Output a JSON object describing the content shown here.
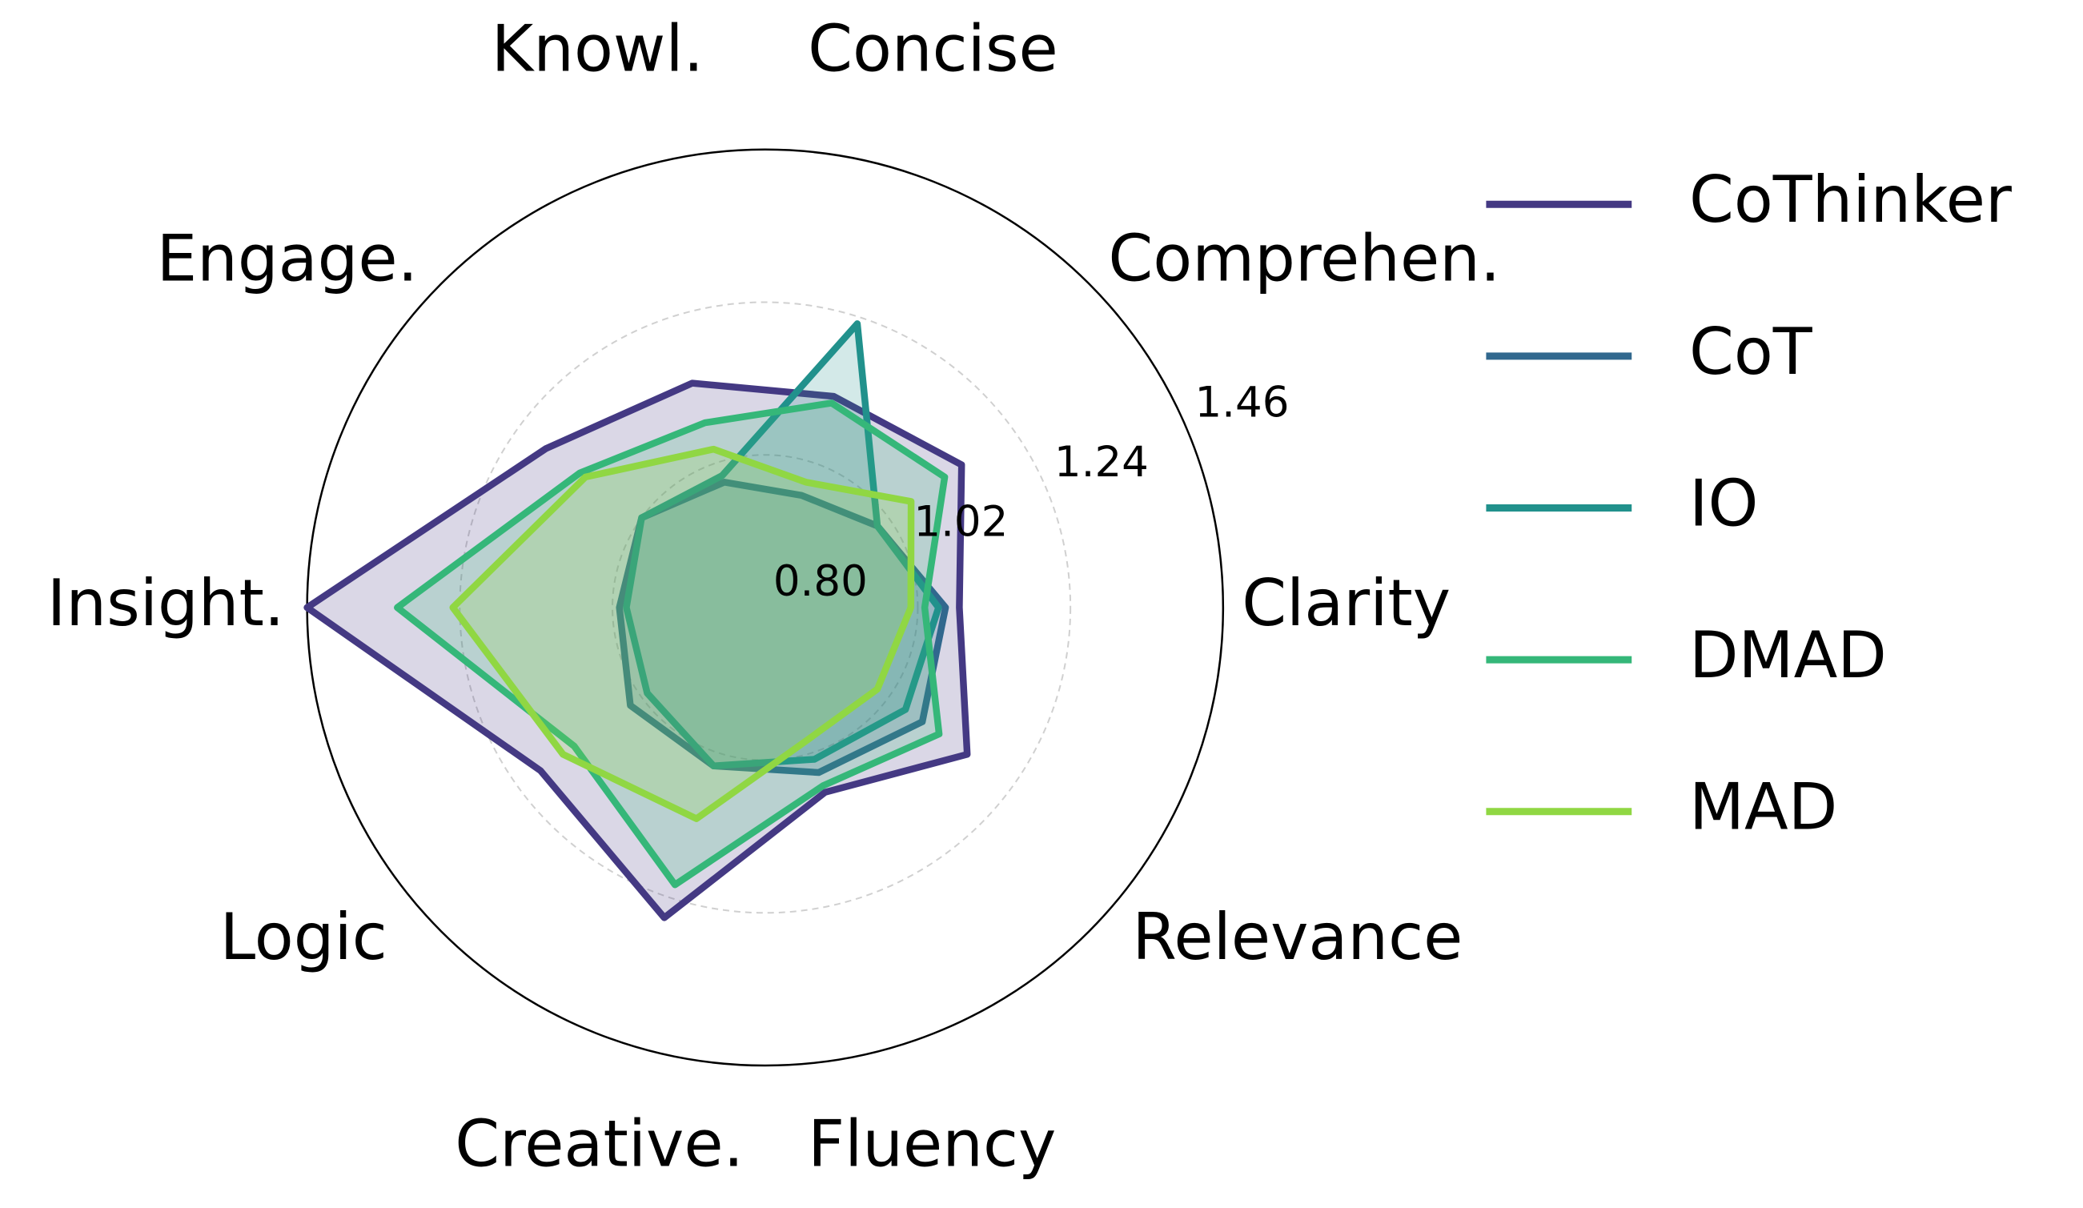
{
  "chart_data": {
    "type": "radar",
    "categories": [
      "Clarity",
      "Comprehen.",
      "Concise",
      "Knowl.",
      "Engage.",
      "Insight.",
      "Logic",
      "Creative.",
      "Fluency",
      "Relevance"
    ],
    "ylim": [
      0.8,
      1.46
    ],
    "yticks": [
      {
        "value": 0.8,
        "label": "0.80"
      },
      1.02,
      1.24,
      1.46
    ],
    "grid": true,
    "legend": "right",
    "series": [
      {
        "name": "CoThinker",
        "color": "#443983",
        "values": [
          1.08,
          1.15,
          1.12,
          1.14,
          1.19,
          1.46,
          1.2,
          1.27,
          1.08,
          1.16
        ]
      },
      {
        "name": "CoT",
        "color": "#31688e",
        "values": [
          1.06,
          1.0,
          0.97,
          0.99,
          1.02,
          1.01,
          1.04,
          1.04,
          1.05,
          1.08
        ]
      },
      {
        "name": "IO",
        "color": "#21918c",
        "values": [
          1.05,
          1.0,
          1.23,
          1.0,
          1.02,
          1.0,
          1.01,
          1.04,
          1.03,
          1.05
        ]
      },
      {
        "name": "DMAD",
        "color": "#35b779",
        "values": [
          1.03,
          1.12,
          1.11,
          1.08,
          1.13,
          1.33,
          1.14,
          1.22,
          1.07,
          1.11
        ]
      },
      {
        "name": "MAD",
        "color": "#90d743",
        "values": [
          1.01,
          1.06,
          0.99,
          1.04,
          1.12,
          1.25,
          1.16,
          1.12,
          1.0,
          1.0
        ]
      }
    ]
  }
}
